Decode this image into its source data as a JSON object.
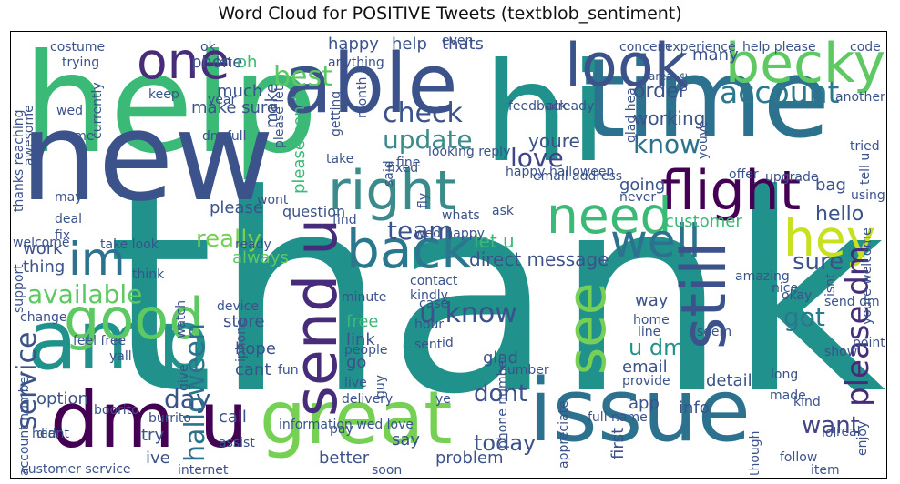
{
  "title": "Word Cloud for POSITIVE Tweets (textblob_sentiment)",
  "words": [
    {
      "text": "thank",
      "color": "#21918c"
    },
    {
      "text": "help",
      "color": "#3aba76"
    },
    {
      "text": "new",
      "color": "#3b528b"
    },
    {
      "text": "time",
      "color": "#2c728e"
    },
    {
      "text": "able",
      "color": "#3b528b"
    },
    {
      "text": "hi",
      "color": "#21918c"
    },
    {
      "text": "issue",
      "color": "#2c728e"
    },
    {
      "text": "great",
      "color": "#75d054"
    },
    {
      "text": "dm u",
      "color": "#440154"
    },
    {
      "text": "amp",
      "color": "#21918c"
    },
    {
      "text": "becky",
      "color": "#5ec962"
    },
    {
      "text": "look",
      "color": "#3b528b"
    },
    {
      "text": "one",
      "color": "#472c7a"
    },
    {
      "text": "right",
      "color": "#3b8a8c"
    },
    {
      "text": "flight",
      "color": "#440154"
    },
    {
      "text": "need",
      "color": "#3aba76"
    },
    {
      "text": "back",
      "color": "#2a788e"
    },
    {
      "text": "well",
      "color": "#2c728e"
    },
    {
      "text": "hey",
      "color": "#c8e020"
    },
    {
      "text": "still",
      "color": "#3b528b"
    },
    {
      "text": "send u",
      "color": "#472c7a"
    },
    {
      "text": "good",
      "color": "#5ec962"
    },
    {
      "text": "see",
      "color": "#75d054"
    },
    {
      "text": "im",
      "color": "#2c728e"
    },
    {
      "text": "account",
      "color": "#2a788e"
    },
    {
      "text": "check",
      "color": "#3b528b"
    },
    {
      "text": "update",
      "color": "#3b8a8c"
    },
    {
      "text": "know",
      "color": "#2c728e"
    },
    {
      "text": "love",
      "color": "#414487"
    },
    {
      "text": "team",
      "color": "#3b528b"
    },
    {
      "text": "u know",
      "color": "#3b528b"
    },
    {
      "text": "please dm",
      "color": "#472c7a"
    },
    {
      "text": "available",
      "color": "#5ec962"
    },
    {
      "text": "best",
      "color": "#5ec962"
    },
    {
      "text": "service",
      "color": "#3b528b"
    },
    {
      "text": "dont",
      "color": "#3b528b"
    },
    {
      "text": "today",
      "color": "#3b528b"
    },
    {
      "text": "sure",
      "color": "#3b528b"
    },
    {
      "text": "got",
      "color": "#2a788e"
    },
    {
      "text": "u dm",
      "color": "#21918c"
    },
    {
      "text": "want",
      "color": "#414487"
    },
    {
      "text": "day",
      "color": "#3b528b"
    },
    {
      "text": "please send",
      "color": "#3aba76"
    },
    {
      "text": "halloween",
      "color": "#2c728e"
    },
    {
      "text": "really",
      "color": "#75d054"
    },
    {
      "text": "order",
      "color": "#3b528b"
    },
    {
      "text": "working",
      "color": "#3b528b"
    },
    {
      "text": "youre",
      "color": "#3b528b"
    },
    {
      "text": "make sure",
      "color": "#3b528b"
    },
    {
      "text": "going",
      "color": "#3b528b"
    },
    {
      "text": "hello",
      "color": "#3b528b"
    },
    {
      "text": "customer",
      "color": "#3aba76"
    },
    {
      "text": "bag",
      "color": "#3b528b"
    },
    {
      "text": "direct message",
      "color": "#3b528b"
    },
    {
      "text": "let u",
      "color": "#3aba76"
    },
    {
      "text": "question",
      "color": "#3b528b"
    },
    {
      "text": "always",
      "color": "#5ec962"
    },
    {
      "text": "happy",
      "color": "#3b528b"
    },
    {
      "text": "help",
      "color": "#3b528b"
    },
    {
      "text": "thats",
      "color": "#3b528b"
    },
    {
      "text": "many",
      "color": "#3b528b"
    },
    {
      "text": "phone",
      "color": "#3b528b"
    },
    {
      "text": "oh",
      "color": "#3aba76"
    },
    {
      "text": "much",
      "color": "#3b528b"
    },
    {
      "text": "make",
      "color": "#3b528b"
    },
    {
      "text": "please",
      "color": "#3b528b"
    },
    {
      "text": "work",
      "color": "#3b528b"
    },
    {
      "text": "thing",
      "color": "#3b528b"
    },
    {
      "text": "store",
      "color": "#3b528b"
    },
    {
      "text": "hope",
      "color": "#3b528b"
    },
    {
      "text": "cant",
      "color": "#3b528b"
    },
    {
      "text": "free",
      "color": "#3aba76"
    },
    {
      "text": "link",
      "color": "#3b528b"
    },
    {
      "text": "go",
      "color": "#3b528b"
    },
    {
      "text": "glad",
      "color": "#3b528b"
    },
    {
      "text": "email",
      "color": "#3b528b"
    },
    {
      "text": "app",
      "color": "#3b528b"
    },
    {
      "text": "info",
      "color": "#3b528b"
    },
    {
      "text": "detail",
      "color": "#3b528b"
    },
    {
      "text": "call",
      "color": "#3b528b"
    },
    {
      "text": "option",
      "color": "#3b528b"
    },
    {
      "text": "try",
      "color": "#3b528b"
    },
    {
      "text": "ive",
      "color": "#3b528b"
    },
    {
      "text": "better",
      "color": "#3b528b"
    },
    {
      "text": "say",
      "color": "#3b528b"
    },
    {
      "text": "problem",
      "color": "#3b528b"
    },
    {
      "text": "first",
      "color": "#3b528b"
    },
    {
      "text": "way",
      "color": "#3b528b"
    },
    {
      "text": "costume",
      "color": "#3b528b"
    },
    {
      "text": "trying",
      "color": "#3b528b"
    },
    {
      "text": "ok",
      "color": "#3b528b"
    },
    {
      "text": "let",
      "color": "#3b528b"
    },
    {
      "text": "even",
      "color": "#3b528b"
    },
    {
      "text": "anything",
      "color": "#3b528b"
    },
    {
      "text": "concern",
      "color": "#3b528b"
    },
    {
      "text": "experience",
      "color": "#3b528b"
    },
    {
      "text": "help please",
      "color": "#3b528b"
    },
    {
      "text": "code",
      "color": "#3b528b"
    },
    {
      "text": "area",
      "color": "#3b528b"
    },
    {
      "text": "use",
      "color": "#3b528b"
    },
    {
      "text": "keep",
      "color": "#3b528b"
    },
    {
      "text": "year",
      "color": "#3b528b"
    },
    {
      "text": "please let",
      "color": "#3b528b"
    },
    {
      "text": "feedback",
      "color": "#3b528b"
    },
    {
      "text": "another",
      "color": "#3b528b"
    },
    {
      "text": "already",
      "color": "#3b528b"
    },
    {
      "text": "glad hear",
      "color": "#3b528b"
    },
    {
      "text": "youve",
      "color": "#3b528b"
    },
    {
      "text": "wed",
      "color": "#3b528b"
    },
    {
      "text": "currently",
      "color": "#3b528b"
    },
    {
      "text": "awesome",
      "color": "#3b528b"
    },
    {
      "text": "come",
      "color": "#3b528b"
    },
    {
      "text": "dm full",
      "color": "#3b528b"
    },
    {
      "text": "month",
      "color": "#3b528b"
    },
    {
      "text": "getting",
      "color": "#3b528b"
    },
    {
      "text": "tried",
      "color": "#3b528b"
    },
    {
      "text": "tell u",
      "color": "#3b528b"
    },
    {
      "text": "thanks reaching",
      "color": "#3b528b"
    },
    {
      "text": "take",
      "color": "#3b528b"
    },
    {
      "text": "looking reply",
      "color": "#3b528b"
    },
    {
      "text": "fixed",
      "color": "#3b528b"
    },
    {
      "text": "fine",
      "color": "#3b528b"
    },
    {
      "text": "said",
      "color": "#3b528b"
    },
    {
      "text": "happy halloween",
      "color": "#3b528b"
    },
    {
      "text": "offer",
      "color": "#3b528b"
    },
    {
      "text": "upgrade",
      "color": "#3b528b"
    },
    {
      "text": "may",
      "color": "#3b528b"
    },
    {
      "text": "wont",
      "color": "#3b528b"
    },
    {
      "text": "email address",
      "color": "#3b528b"
    },
    {
      "text": "never",
      "color": "#3b528b"
    },
    {
      "text": "using",
      "color": "#3b528b"
    },
    {
      "text": "deal",
      "color": "#3b528b"
    },
    {
      "text": "find",
      "color": "#3b528b"
    },
    {
      "text": "whats",
      "color": "#3b528b"
    },
    {
      "text": "ask",
      "color": "#3b528b"
    },
    {
      "text": "fly",
      "color": "#3b528b"
    },
    {
      "text": "welcome",
      "color": "#3b528b"
    },
    {
      "text": "support",
      "color": "#3b528b"
    },
    {
      "text": "fix",
      "color": "#3b528b"
    },
    {
      "text": "wed happy",
      "color": "#3b528b"
    },
    {
      "text": "take look",
      "color": "#3b528b"
    },
    {
      "text": "ready",
      "color": "#3b528b"
    },
    {
      "text": "isnt",
      "color": "#3b528b"
    },
    {
      "text": "youre welcome",
      "color": "#3b528b"
    },
    {
      "text": "think",
      "color": "#3b528b"
    },
    {
      "text": "amazing",
      "color": "#3b528b"
    },
    {
      "text": "contact",
      "color": "#3b528b"
    },
    {
      "text": "kindly",
      "color": "#3b528b"
    },
    {
      "text": "nice",
      "color": "#3b528b"
    },
    {
      "text": "okay",
      "color": "#3b528b"
    },
    {
      "text": "device",
      "color": "#3b528b"
    },
    {
      "text": "case",
      "color": "#3b528b"
    },
    {
      "text": "minute",
      "color": "#3b528b"
    },
    {
      "text": "send dm",
      "color": "#3b528b"
    },
    {
      "text": "change",
      "color": "#3b528b"
    },
    {
      "text": "watch",
      "color": "#3b528b"
    },
    {
      "text": "iphone",
      "color": "#3b528b"
    },
    {
      "text": "hour",
      "color": "#3b528b"
    },
    {
      "text": "home",
      "color": "#3b528b"
    },
    {
      "text": "line",
      "color": "#3b528b"
    },
    {
      "text": "seem",
      "color": "#3b528b"
    },
    {
      "text": "feel free",
      "color": "#3b528b"
    },
    {
      "text": "yall",
      "color": "#3b528b"
    },
    {
      "text": "fun",
      "color": "#3b528b"
    },
    {
      "text": "sent",
      "color": "#3b528b"
    },
    {
      "text": "id",
      "color": "#3b528b"
    },
    {
      "text": "people",
      "color": "#3b528b"
    },
    {
      "text": "show",
      "color": "#3b528b"
    },
    {
      "text": "point",
      "color": "#3b528b"
    },
    {
      "text": "give",
      "color": "#3b528b"
    },
    {
      "text": "live",
      "color": "#3b528b"
    },
    {
      "text": "guy",
      "color": "#3b528b"
    },
    {
      "text": "number",
      "color": "#3b528b"
    },
    {
      "text": "phone number",
      "color": "#3b528b"
    },
    {
      "text": "long",
      "color": "#3b528b"
    },
    {
      "text": "provide",
      "color": "#3b528b"
    },
    {
      "text": "account number",
      "color": "#3b528b"
    },
    {
      "text": "boorito",
      "color": "#3b528b"
    },
    {
      "text": "didnt",
      "color": "#3b528b"
    },
    {
      "text": "burrito",
      "color": "#3b528b"
    },
    {
      "text": "information wed love",
      "color": "#3b528b"
    },
    {
      "text": "delivery",
      "color": "#3b528b"
    },
    {
      "text": "ye",
      "color": "#3b528b"
    },
    {
      "text": "appreciate",
      "color": "#3b528b"
    },
    {
      "text": "made",
      "color": "#3b528b"
    },
    {
      "text": "kind",
      "color": "#3b528b"
    },
    {
      "text": "pay",
      "color": "#3b528b"
    },
    {
      "text": "full name",
      "color": "#3b528b"
    },
    {
      "text": "lol",
      "color": "#3b528b"
    },
    {
      "text": "real",
      "color": "#3b528b"
    },
    {
      "text": "enjoy",
      "color": "#3b528b"
    },
    {
      "text": "hear",
      "color": "#3b528b"
    },
    {
      "text": "assist",
      "color": "#3b528b"
    },
    {
      "text": "though",
      "color": "#3b528b"
    },
    {
      "text": "follow",
      "color": "#3b528b"
    },
    {
      "text": "customer service",
      "color": "#3b528b"
    },
    {
      "text": "internet",
      "color": "#3b528b"
    },
    {
      "text": "soon",
      "color": "#3b528b"
    },
    {
      "text": "item",
      "color": "#3b528b"
    }
  ]
}
